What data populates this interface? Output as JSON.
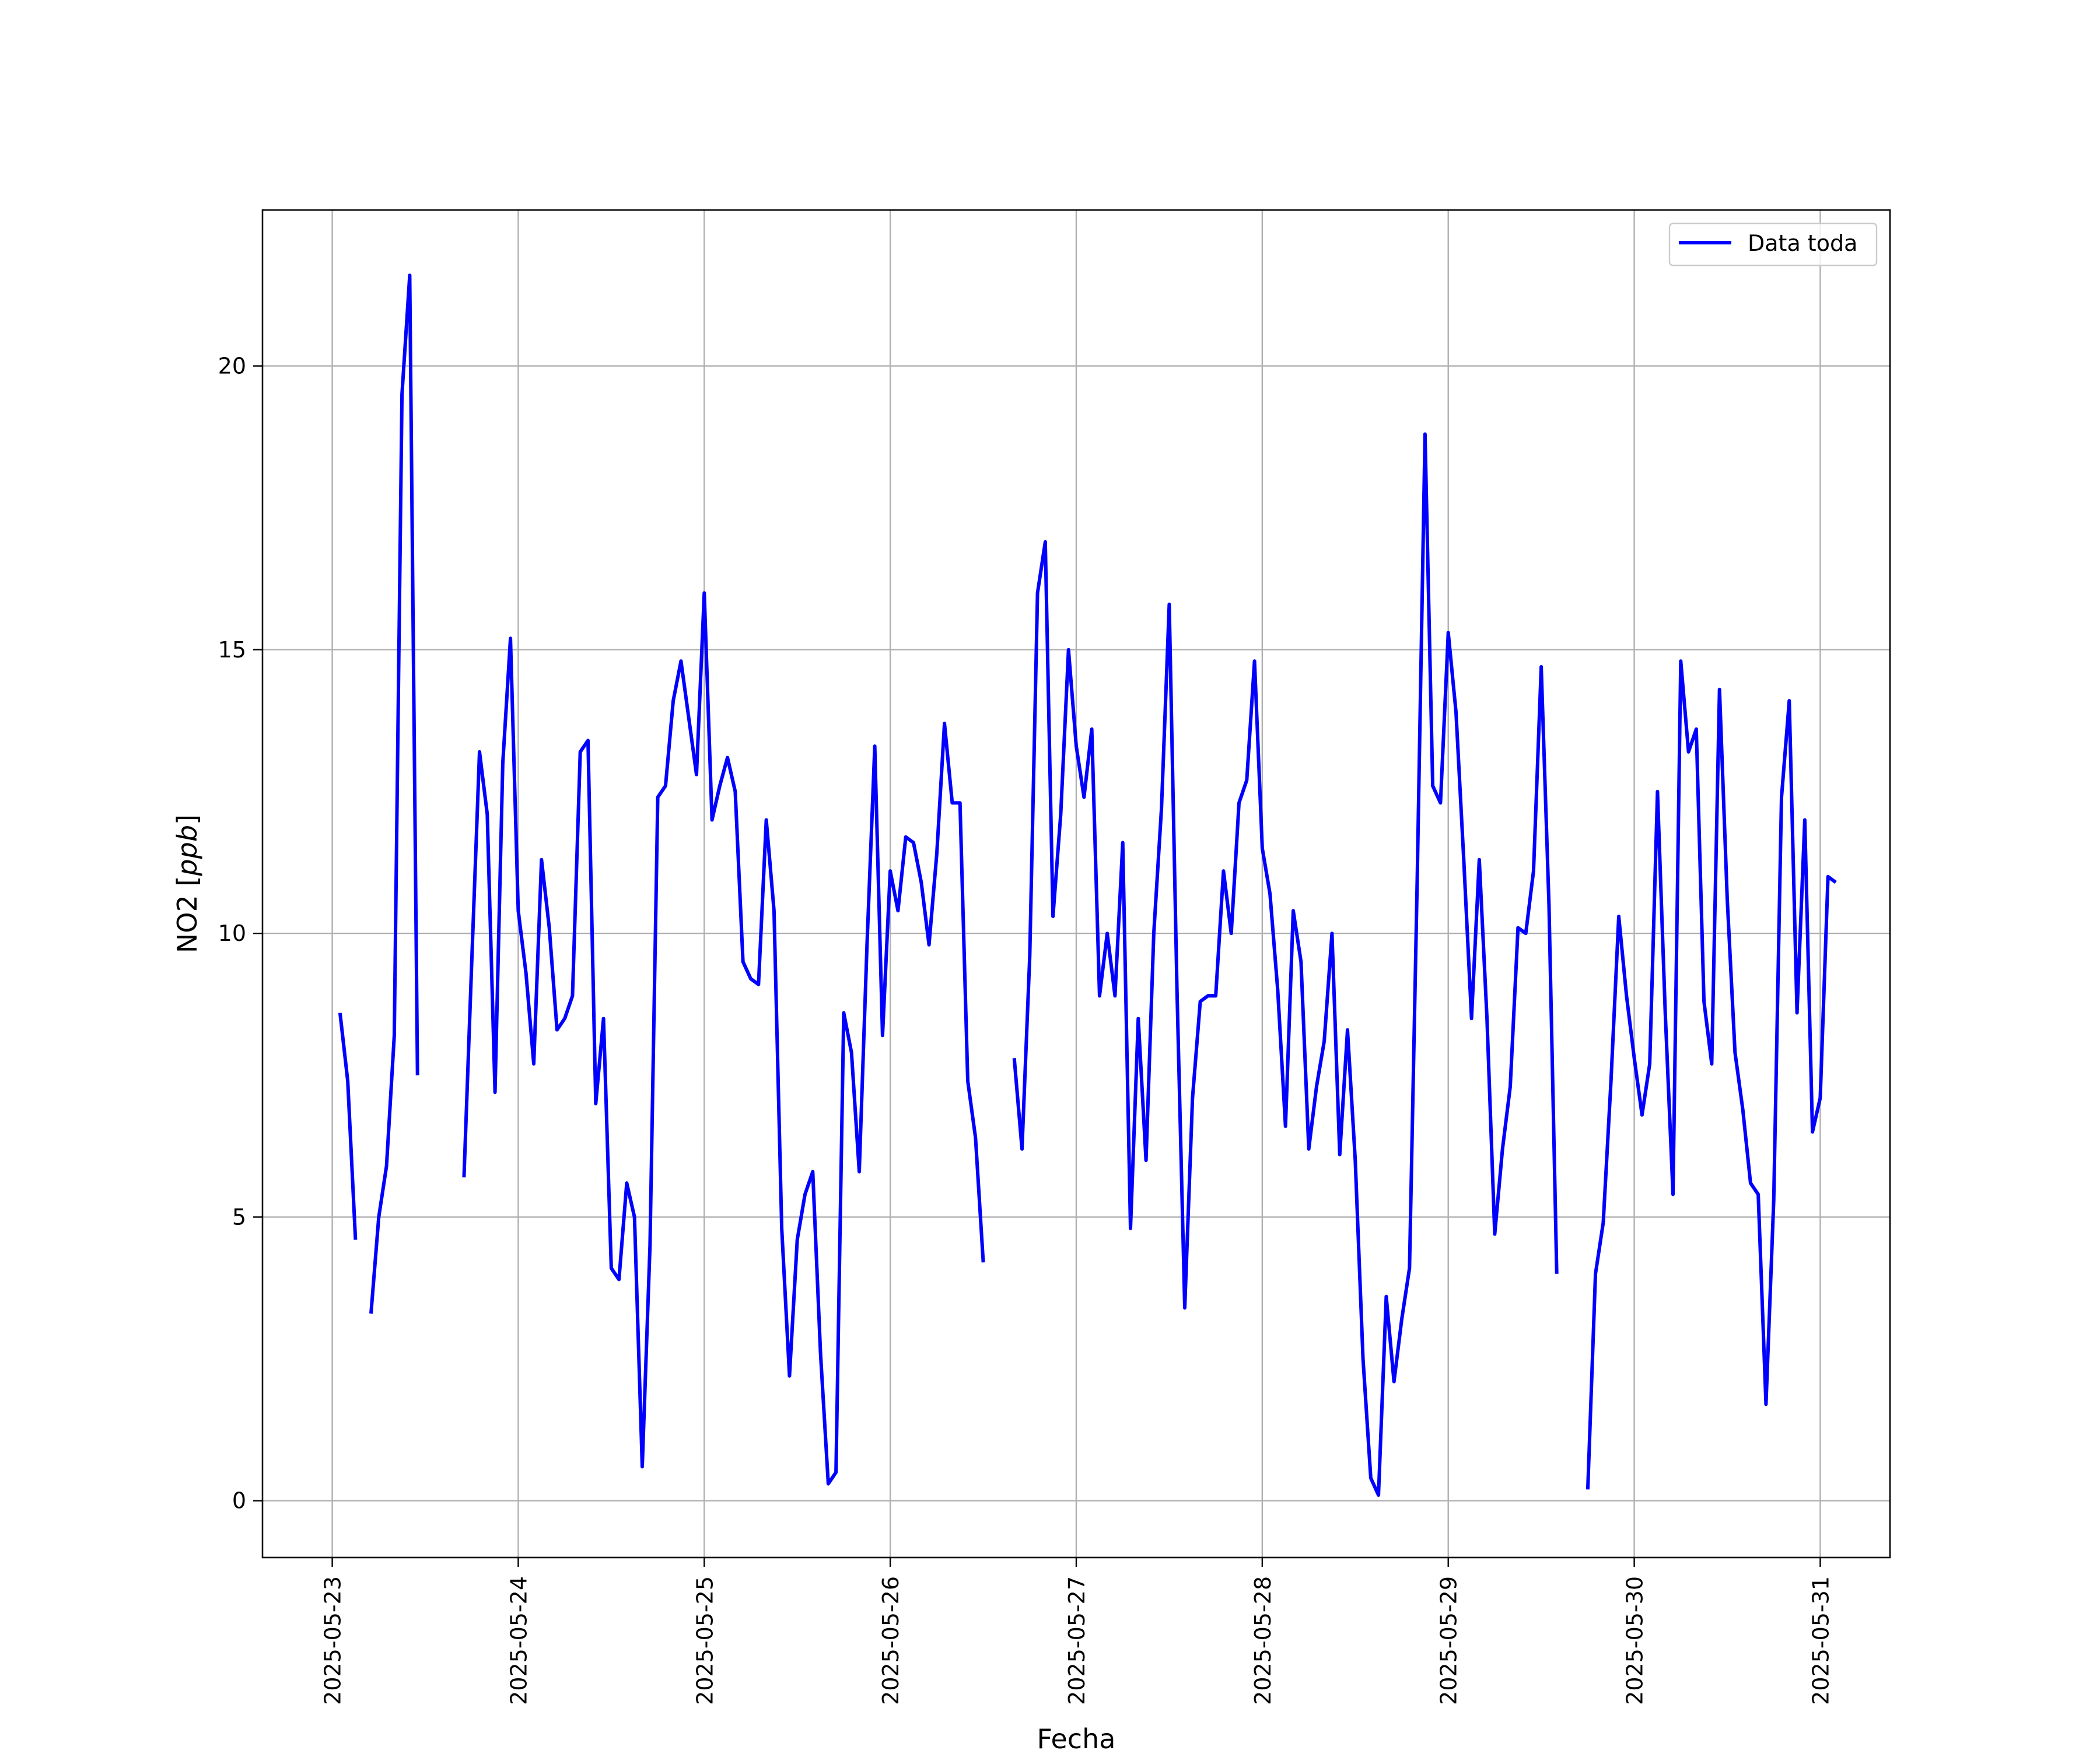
{
  "chart_data": {
    "type": "line",
    "xlabel": "Fecha",
    "ylabel_prefix": "NO2 [",
    "ylabel_unit": "ppb",
    "ylabel_suffix": "]",
    "x_ticks": [
      "2025-05-23",
      "2025-05-24",
      "2025-05-25",
      "2025-05-26",
      "2025-05-27",
      "2025-05-28",
      "2025-05-29",
      "2025-05-30",
      "2025-05-31"
    ],
    "y_ticks": [
      0,
      5,
      10,
      15,
      20
    ],
    "xlim": [
      "2025-05-22T15:00",
      "2025-05-31T09:00"
    ],
    "ylim": [
      -1,
      22.75
    ],
    "grid": true,
    "legend_position": "top-right",
    "series": [
      {
        "name": "Data toda",
        "color": "#0000ff",
        "x_start": "2025-05-23T01:00",
        "step_hours": 1,
        "values": [
          8.6,
          7.4,
          4.6,
          null,
          3.3,
          5.0,
          5.9,
          8.2,
          19.5,
          21.6,
          7.5,
          null,
          null,
          null,
          null,
          null,
          5.7,
          9.5,
          13.2,
          12.1,
          7.2,
          13.0,
          15.2,
          10.4,
          9.3,
          7.7,
          11.3,
          10.1,
          8.3,
          8.5,
          8.9,
          13.2,
          13.4,
          7.0,
          8.5,
          4.1,
          3.9,
          5.6,
          5.0,
          0.6,
          4.5,
          12.4,
          12.6,
          14.1,
          14.8,
          13.8,
          12.8,
          16.0,
          12.0,
          12.6,
          13.1,
          12.5,
          9.5,
          9.2,
          9.1,
          12.0,
          10.4,
          4.8,
          2.2,
          4.6,
          5.4,
          5.8,
          2.6,
          0.3,
          0.5,
          8.6,
          7.9,
          5.8,
          9.8,
          13.3,
          8.2,
          11.1,
          10.4,
          11.7,
          11.6,
          10.9,
          9.8,
          11.4,
          13.7,
          12.3,
          12.3,
          7.4,
          6.4,
          4.2,
          null,
          null,
          null,
          7.8,
          6.2,
          9.6,
          16.0,
          16.9,
          10.3,
          12.1,
          15.0,
          13.3,
          12.4,
          13.6,
          8.9,
          10.0,
          8.9,
          11.6,
          4.8,
          8.5,
          6.0,
          10.0,
          12.2,
          15.8,
          9.0,
          3.4,
          7.1,
          8.8,
          8.9,
          8.9,
          11.1,
          10.0,
          12.3,
          12.7,
          14.8,
          11.5,
          10.7,
          9.0,
          6.6,
          10.4,
          9.5,
          6.2,
          7.3,
          8.1,
          10.0,
          6.1,
          8.3,
          6.0,
          2.5,
          0.4,
          0.1,
          3.6,
          2.1,
          3.2,
          4.1,
          11.0,
          18.8,
          12.6,
          12.3,
          15.3,
          13.9,
          11.3,
          8.5,
          11.3,
          8.5,
          4.7,
          6.2,
          7.3,
          10.1,
          10.0,
          11.1,
          14.7,
          10.5,
          4.0,
          null,
          null,
          null,
          0.2,
          4.0,
          4.9,
          7.4,
          10.3,
          8.9,
          7.8,
          6.8,
          7.7,
          12.5,
          8.6,
          5.4,
          14.8,
          13.2,
          13.6,
          8.8,
          7.7,
          14.3,
          10.6,
          7.9,
          6.9,
          5.6,
          5.4,
          1.7,
          5.3,
          12.4,
          14.1,
          8.6,
          12.0,
          6.5,
          7.1,
          11.0,
          10.9
        ]
      }
    ]
  }
}
